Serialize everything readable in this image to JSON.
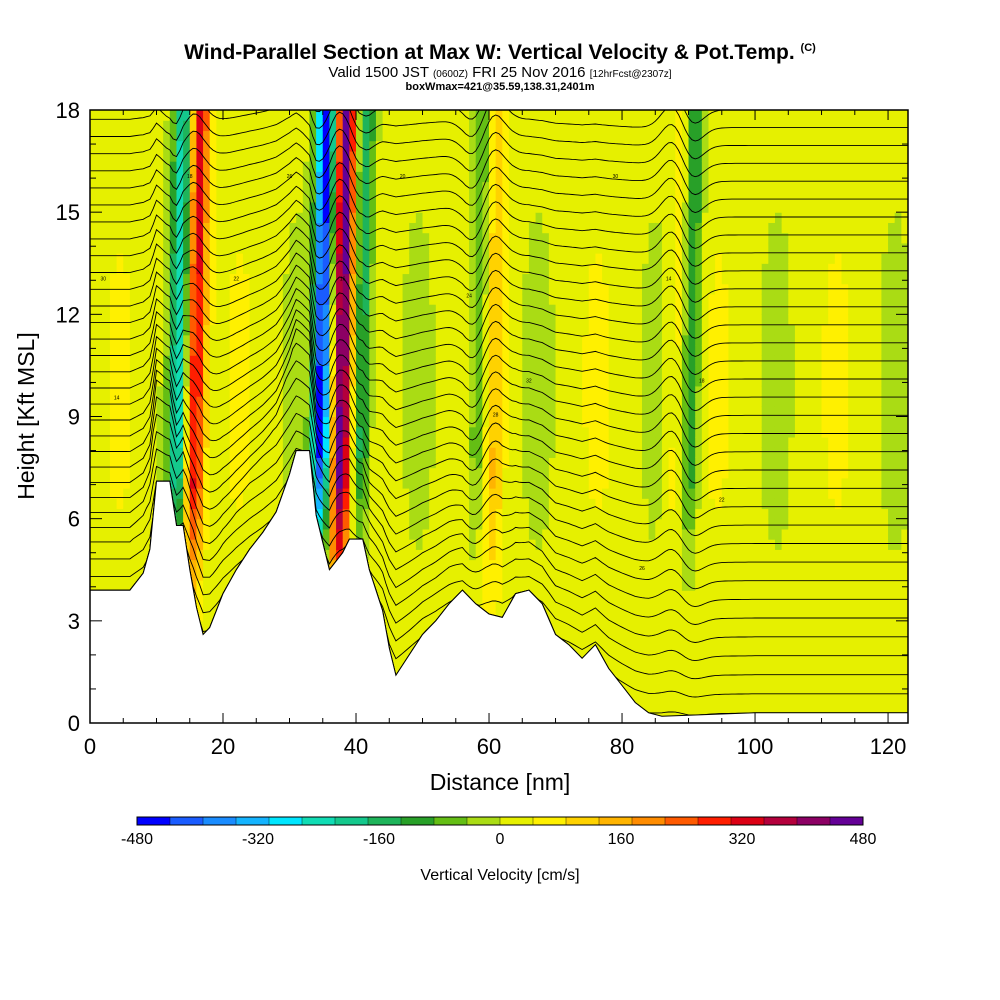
{
  "header": {
    "title": "Wind-Parallel Section at Max W: Vertical Velocity & Pot.Temp.",
    "title_suffix": "(C)",
    "subtitle_a": "Valid 1500 JST",
    "subtitle_b": "(0600Z)",
    "subtitle_c": "FRI 25 Nov 2016",
    "subtitle_d": "[12hrFcst@2307z]",
    "subtitle_line3": "boxWmax=421@35.59,138.31,2401m"
  },
  "chart_data": {
    "type": "heatmap",
    "title": "Wind-Parallel Section at Max W: Vertical Velocity & Pot.Temp.",
    "xlabel": "Distance [nm]",
    "ylabel": "Height [Kft MSL]",
    "xlim": [
      0,
      123
    ],
    "ylim": [
      0,
      18
    ],
    "x_ticks": [
      0,
      20,
      40,
      60,
      80,
      100,
      120
    ],
    "y_ticks": [
      0,
      3,
      6,
      9,
      12,
      15,
      18
    ],
    "colorbar": {
      "label": "Vertical Velocity [cm/s]",
      "min": -480,
      "max": 480,
      "step": 40,
      "tick_values": [
        -480,
        -320,
        -160,
        0,
        160,
        320,
        480
      ],
      "colors": [
        "#0000ff",
        "#1a5cff",
        "#1a8cff",
        "#14b4ff",
        "#00e6ff",
        "#10dcb4",
        "#14c88c",
        "#1eb45a",
        "#28a028",
        "#64be14",
        "#aadc14",
        "#e6f000",
        "#fff000",
        "#ffd200",
        "#ffb400",
        "#ff8c00",
        "#ff5a00",
        "#ff1e00",
        "#dc0014",
        "#b4003c",
        "#8c0064",
        "#640096"
      ]
    },
    "updraft_columns": [
      {
        "x": 15.5,
        "w": 320,
        "direction": "down-stream tilt"
      },
      {
        "x": 37.5,
        "w": 430
      },
      {
        "x": 60.5,
        "w": 100
      },
      {
        "x": 88.0,
        "w": 60
      }
    ],
    "downdraft_columns": [
      {
        "x": 13.0,
        "w": -260
      },
      {
        "x": 34.5,
        "w": -480
      },
      {
        "x": 40.5,
        "w": -200
      },
      {
        "x": 58.0,
        "w": -120
      },
      {
        "x": 90.0,
        "w": -160
      }
    ],
    "terrain_height_kft": [
      [
        0,
        3.9
      ],
      [
        2,
        3.9
      ],
      [
        4,
        3.9
      ],
      [
        6,
        3.9
      ],
      [
        8,
        4.4
      ],
      [
        9,
        5.1
      ],
      [
        10,
        7.1
      ],
      [
        12,
        7.1
      ],
      [
        13,
        5.8
      ],
      [
        14,
        5.8
      ],
      [
        15,
        4.5
      ],
      [
        16,
        3.4
      ],
      [
        17,
        2.6
      ],
      [
        18,
        2.8
      ],
      [
        19,
        3.3
      ],
      [
        20,
        3.8
      ],
      [
        22,
        4.5
      ],
      [
        24,
        5.1
      ],
      [
        26,
        5.6
      ],
      [
        28,
        6.2
      ],
      [
        30,
        7.3
      ],
      [
        31,
        8.0
      ],
      [
        33,
        8.0
      ],
      [
        34,
        6.1
      ],
      [
        36,
        4.5
      ],
      [
        38,
        5.0
      ],
      [
        39,
        5.4
      ],
      [
        41,
        5.4
      ],
      [
        42,
        4.5
      ],
      [
        44,
        3.3
      ],
      [
        45,
        2.2
      ],
      [
        46,
        1.4
      ],
      [
        48,
        2.0
      ],
      [
        50,
        2.6
      ],
      [
        52,
        3.0
      ],
      [
        54,
        3.5
      ],
      [
        56,
        3.9
      ],
      [
        58,
        3.5
      ],
      [
        60,
        3.2
      ],
      [
        62,
        3.1
      ],
      [
        64,
        3.8
      ],
      [
        66,
        3.9
      ],
      [
        68,
        3.5
      ],
      [
        70,
        2.6
      ],
      [
        72,
        2.3
      ],
      [
        74,
        1.9
      ],
      [
        76,
        2.3
      ],
      [
        78,
        1.6
      ],
      [
        80,
        1.1
      ],
      [
        82,
        0.6
      ],
      [
        84,
        0.3
      ],
      [
        86,
        0.2
      ],
      [
        100,
        0.3
      ],
      [
        123,
        0.3
      ]
    ],
    "contour_labels": [
      "30",
      "14",
      "18",
      "22",
      "26",
      "16",
      "20",
      "24",
      "28",
      "32"
    ]
  }
}
